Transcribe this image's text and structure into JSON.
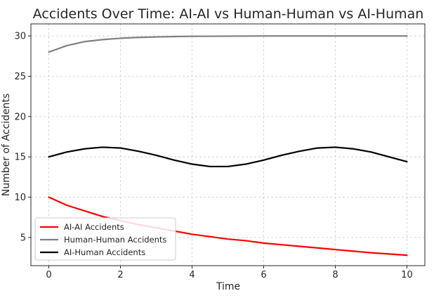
{
  "chart_data": {
    "type": "line",
    "title": "Accidents Over Time: AI-AI vs Human-Human vs AI-Human",
    "xlabel": "Time",
    "ylabel": "Number of Accidents",
    "xlim": [
      -0.5,
      10.5
    ],
    "ylim": [
      1.5,
      31.5
    ],
    "xticks": [
      0,
      2,
      4,
      6,
      8,
      10
    ],
    "yticks": [
      5,
      10,
      15,
      20,
      25,
      30
    ],
    "grid": true,
    "legend_position": "lower-left",
    "x": [
      0,
      0.5,
      1,
      1.5,
      2,
      2.5,
      3,
      3.5,
      4,
      4.5,
      5,
      5.5,
      6,
      6.5,
      7,
      7.5,
      8,
      8.5,
      9,
      9.5,
      10
    ],
    "series": [
      {
        "name": "AI-AI Accidents",
        "color": "#ff0000",
        "values": [
          10.0,
          9.0,
          8.3,
          7.6,
          7.1,
          6.6,
          6.2,
          5.8,
          5.4,
          5.1,
          4.8,
          4.6,
          4.3,
          4.1,
          3.9,
          3.7,
          3.5,
          3.3,
          3.1,
          2.95,
          2.8
        ]
      },
      {
        "name": "Human-Human Accidents",
        "color": "#808080",
        "values": [
          28.0,
          28.8,
          29.3,
          29.55,
          29.72,
          29.82,
          29.88,
          29.93,
          29.96,
          29.97,
          29.98,
          29.99,
          30.0,
          30.0,
          30.0,
          30.0,
          30.0,
          30.0,
          30.0,
          30.0,
          30.0
        ]
      },
      {
        "name": "AI-Human Accidents",
        "color": "#000000",
        "values": [
          15.0,
          15.6,
          16.0,
          16.2,
          16.1,
          15.7,
          15.2,
          14.6,
          14.1,
          13.8,
          13.8,
          14.1,
          14.6,
          15.2,
          15.7,
          16.1,
          16.2,
          16.0,
          15.6,
          15.0,
          14.4
        ]
      }
    ]
  }
}
